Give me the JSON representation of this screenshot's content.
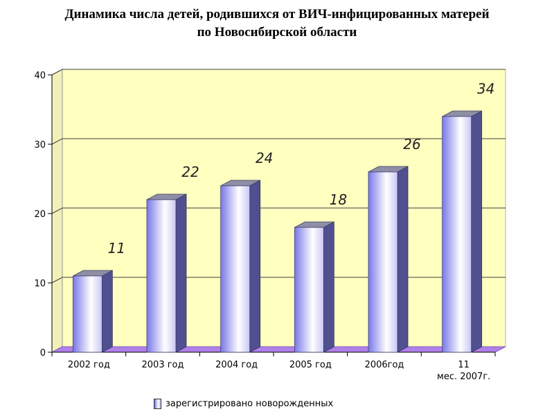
{
  "title": {
    "line1": "Динамика числа детей, родившихся  от ВИЧ-инфицированных матерей",
    "line2": "по Новосибирской области"
  },
  "chart_data": {
    "type": "bar",
    "categories": [
      "2002 год",
      "2003 год",
      "2004 год",
      "2005 год",
      "2006год",
      "11 мес. 2007г."
    ],
    "category_lines": [
      [
        "2002 год"
      ],
      [
        "2003 год"
      ],
      [
        "2004 год"
      ],
      [
        "2005 год"
      ],
      [
        "2006год"
      ],
      [
        "11",
        "мес. 2007г."
      ]
    ],
    "series": [
      {
        "name": "зарегистрировано новорожденных",
        "values": [
          11,
          22,
          24,
          18,
          26,
          34
        ]
      }
    ],
    "ylim": [
      0,
      40
    ],
    "yticks": [
      0,
      10,
      20,
      30,
      40
    ],
    "grid": true,
    "legend": "bottom",
    "colors": {
      "wall": "#ffffc0",
      "floor": "#b080e8",
      "bar_left": "#7878e8",
      "bar_light": "#ffffff",
      "bar_side": "#505090",
      "bar_top": "#8e8ea6",
      "grid": "#404040"
    }
  }
}
